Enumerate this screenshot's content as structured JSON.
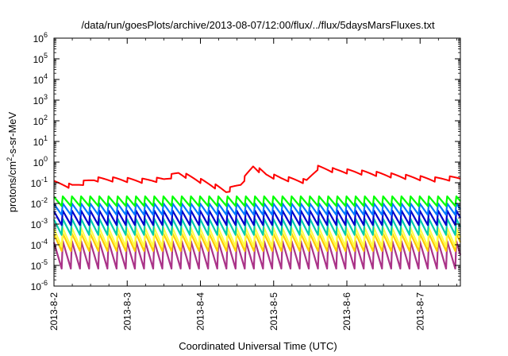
{
  "chart_data": {
    "type": "line",
    "title": "/data/run/goesPlots/archive/2013-08-07/12:00/flux/../flux/5daysMarsFluxes.txt",
    "xlabel": "Coordinated Universal Time (UTC)",
    "ylabel_parts": {
      "pre": "protons/cm",
      "sup": "2",
      "post": "-s-sr-MeV"
    },
    "yscale": "log",
    "ylim_exp": [
      -6,
      6
    ],
    "xlim_days": [
      2.0,
      7.55
    ],
    "xticks": [
      {
        "label": "2013-8-2",
        "day": 2
      },
      {
        "label": "2013-8-3",
        "day": 3
      },
      {
        "label": "2013-8-4",
        "day": 4
      },
      {
        "label": "2013-8-5",
        "day": 5
      },
      {
        "label": "2013-8-6",
        "day": 6
      },
      {
        "label": "2013-8-7",
        "day": 7
      }
    ],
    "grid": false,
    "legend": "none",
    "series_styles": [
      {
        "color": "#ff0000"
      },
      {
        "color": "#00ff00"
      },
      {
        "color": "#0077ff"
      },
      {
        "color": "#0000cc"
      },
      {
        "color": "#00ccaa"
      },
      {
        "color": "#ffff44"
      },
      {
        "color": "#ffcc00"
      },
      {
        "color": "#aa3388"
      }
    ],
    "series": [
      {
        "base": 0.1,
        "low": 0.05,
        "high": 0.22,
        "period": 0.125,
        "desc": "red channel ~1e-1"
      },
      {
        "base": 0.016,
        "low": 0.0075,
        "high": 0.022,
        "period": 0.125
      },
      {
        "base": 0.007,
        "low": 0.0028,
        "high": 0.01,
        "period": 0.125
      },
      {
        "base": 0.003,
        "low": 0.0009,
        "high": 0.0045,
        "period": 0.125
      },
      {
        "base": 0.0012,
        "low": 0.0003,
        "high": 0.0018,
        "period": 0.125
      },
      {
        "base": 0.0004,
        "low": 8e-05,
        "high": 0.00065,
        "period": 0.125
      },
      {
        "base": 0.0002,
        "low": 5e-05,
        "high": 0.00035,
        "period": 0.125
      },
      {
        "base": 0.0001,
        "low": 7e-06,
        "high": 0.00015,
        "period": 0.125
      }
    ],
    "red_profile": [
      [
        2.0,
        0.1
      ],
      [
        2.25,
        0.07
      ],
      [
        2.55,
        0.15
      ],
      [
        2.85,
        0.15
      ],
      [
        3.2,
        0.13
      ],
      [
        3.5,
        0.15
      ],
      [
        3.7,
        0.3
      ],
      [
        3.95,
        0.15
      ],
      [
        4.2,
        0.07
      ],
      [
        4.35,
        0.04
      ],
      [
        4.55,
        0.09
      ],
      [
        4.72,
        0.65
      ],
      [
        4.9,
        0.25
      ],
      [
        5.1,
        0.17
      ],
      [
        5.45,
        0.12
      ],
      [
        5.6,
        0.55
      ],
      [
        5.85,
        0.4
      ],
      [
        6.1,
        0.35
      ],
      [
        6.4,
        0.28
      ],
      [
        6.8,
        0.2
      ],
      [
        7.2,
        0.15
      ],
      [
        7.55,
        0.18
      ]
    ]
  }
}
